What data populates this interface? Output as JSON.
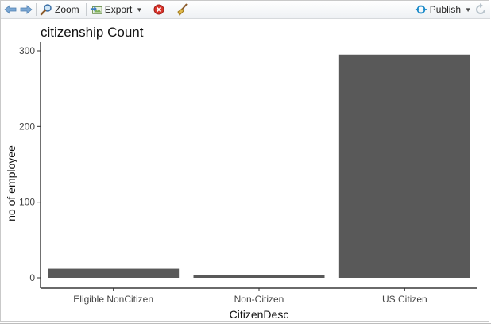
{
  "toolbar": {
    "zoom_label": "Zoom",
    "export_label": "Export",
    "publish_label": "Publish"
  },
  "icons": {
    "back": "arrow-left-icon",
    "forward": "arrow-right-icon",
    "zoom": "magnifier-icon",
    "export": "export-image-icon",
    "remove": "remove-plot-icon",
    "clear": "broom-icon",
    "publish": "publish-icon",
    "refresh": "refresh-icon"
  },
  "colors": {
    "bar": "#595959",
    "accent": "#1a8ac9",
    "remove": "#c62828"
  },
  "chart_data": {
    "type": "bar",
    "title": "citizenship Count",
    "xlabel": "CitizenDesc",
    "ylabel": "no of employee",
    "categories": [
      "Eligible NonCitizen",
      "Non-Citizen",
      "US Citizen"
    ],
    "values": [
      12,
      4,
      295
    ],
    "ylim": [
      0,
      310
    ],
    "yticks": [
      0,
      100,
      200,
      300
    ],
    "grid": false
  }
}
